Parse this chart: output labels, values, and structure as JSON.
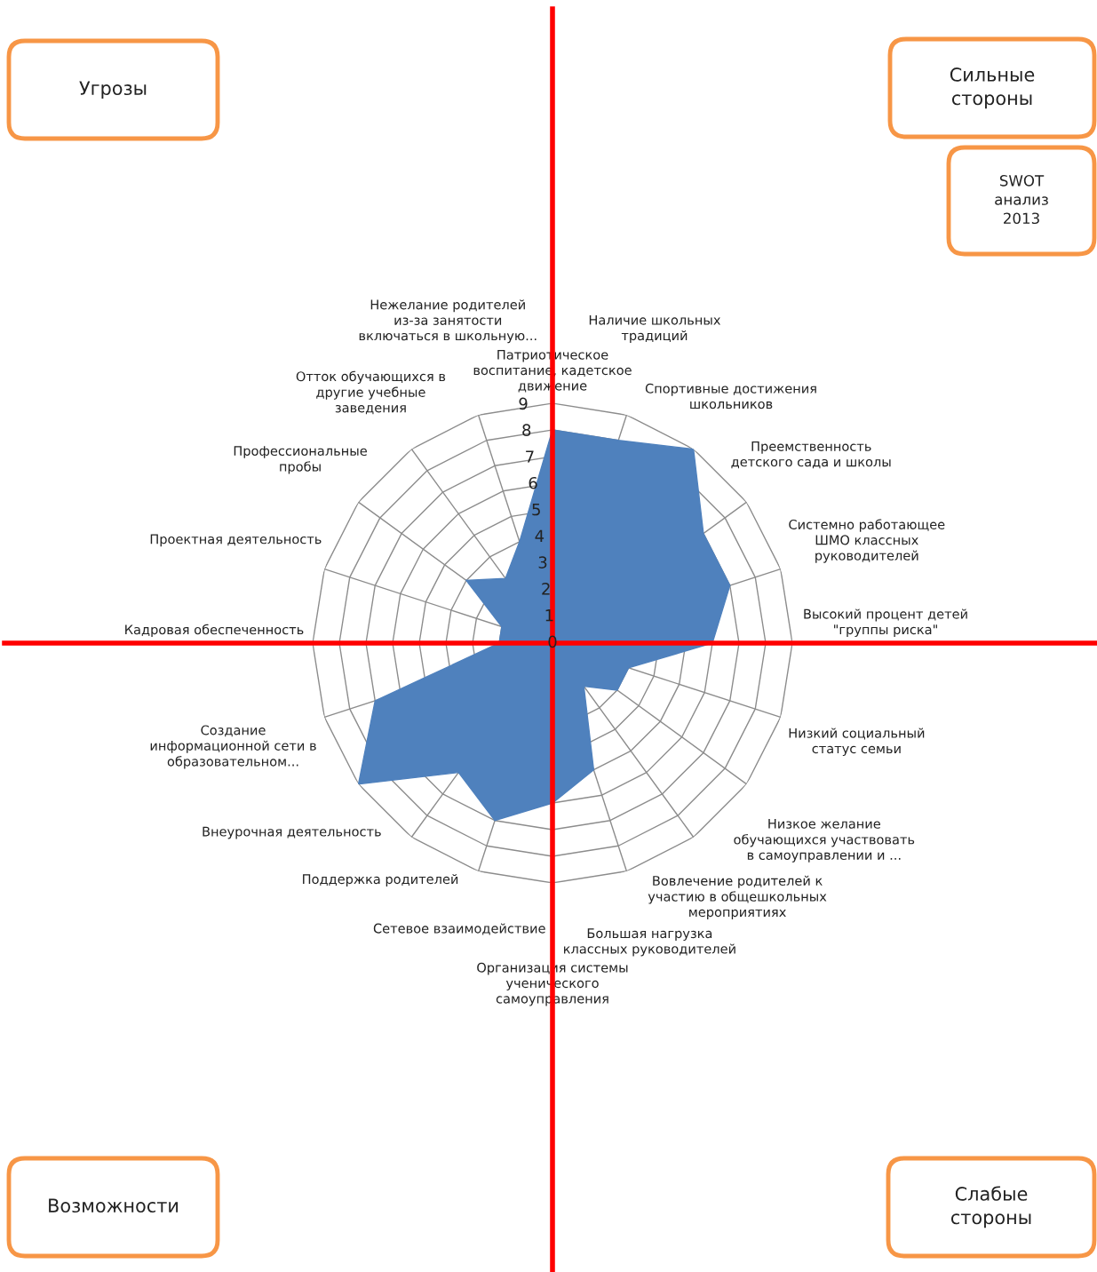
{
  "chart_data": {
    "type": "radar",
    "categories": [
      "Патриотическое\nвоспитание, кадетское\nдвижение",
      "Наличие школьных\nтрадиций",
      "Спортивные достижения\nшкольников",
      "Преемственность\nдетского сада и школы",
      "Системно работающее\nШМО классных\nруководителей",
      "Высокий процент детей\n\"группы риска\"",
      "Низкий социальный\nстатус семьи",
      "Низкое желание\nобучающихся участвовать\nв самоуправлении и ...",
      "Вовлечение родителей к\nучастию в общешкольных\nмероприятиях",
      "Большая нагрузка\nклассных руководителей",
      "Организация системы\nученического\nсамоуправления",
      "Сетевое взаимодействие",
      "Поддержка родителей",
      "Внеурочная деятельность",
      "Создание\nинформационной сети в\nобразовательном...",
      "Кадровая обеспеченность",
      "Проектная деятельность",
      "Профессиональные\nпробы",
      "Отток обучающихся в\nдругие учебные\nзаведения",
      "Нежелание родителей\nиз-за занятости\nвключаться в школьную..."
    ],
    "series": [
      {
        "color": "#4f81bd",
        "values": [
          8,
          8,
          9,
          7,
          7,
          6,
          3,
          3,
          2,
          5,
          6,
          7,
          6,
          9,
          7,
          2,
          2,
          4,
          3,
          4
        ]
      }
    ],
    "ylim": [
      0,
      9
    ],
    "yticks": [
      0,
      1,
      2,
      3,
      4,
      5,
      6,
      7,
      8,
      9
    ],
    "grid": true,
    "annotations": [
      "Угрозы",
      "Сильные\nстороны",
      "SWOT\nанализ\n2013",
      "Возможности",
      "Слабые\nстороны"
    ]
  }
}
